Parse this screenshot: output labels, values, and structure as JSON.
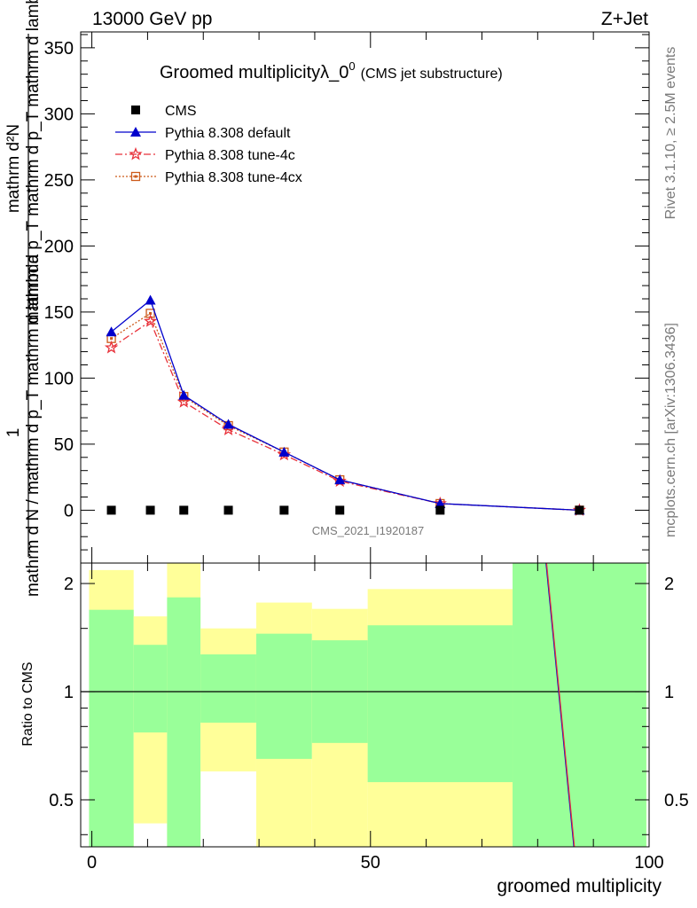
{
  "header": {
    "energy_label": "13000 GeV pp",
    "process_label": "Z+Jet"
  },
  "side_labels": {
    "rivet_label": "Rivet 3.1.10, ≥ 2.5M events",
    "mcplots_label": "mcplots.cern.ch [arXiv:1306.3436]"
  },
  "colors": {
    "pythia_default": "#0000cc",
    "tune_4c": "#e8313a",
    "tune_4cx": "#cc5a1a",
    "band_inner": "#99ff99",
    "band_outer": "#ffff99"
  },
  "chart_data": [
    {
      "type": "line",
      "title": "Groomed multiplicityλ_0",
      "title_superscript": "0",
      "subtitle": "(CMS jet substructure)",
      "xlabel": "groomed multiplicity",
      "ylabel_top": "1",
      "ylabel_bottom": "mathrm d N / mathrm d p_T mathrm d lambda",
      "ylabel_top_line2": "mathrm d²N",
      "ylabel_bottom_line2": "mathrm d p_T mathrm d p_T mathrm d lambda",
      "analysis_label": "CMS_2021_I1920187",
      "xlim": [
        -2,
        100
      ],
      "ylim": [
        -40,
        362
      ],
      "yticks": [
        0,
        50,
        100,
        150,
        200,
        250,
        300,
        350
      ],
      "xticks": [
        0,
        50,
        100
      ],
      "legend_position": "top-left",
      "series": [
        {
          "name": "CMS",
          "marker": "square",
          "x": [
            3.5,
            10.5,
            16.5,
            24.5,
            34.5,
            44.5,
            62.5,
            87.5
          ],
          "y": [
            0,
            0,
            0,
            0,
            0,
            0,
            0,
            0
          ]
        },
        {
          "name": "Pythia 8.308 default",
          "marker": "triangle",
          "line": "solid",
          "x": [
            3.5,
            10.5,
            16.5,
            24.5,
            34.5,
            44.5,
            62.5,
            87.5
          ],
          "y": [
            135,
            159,
            87,
            65,
            44,
            23,
            5,
            0
          ]
        },
        {
          "name": "Pythia 8.308 tune-4c",
          "marker": "star",
          "line": "dashdot",
          "x": [
            3.5,
            10.5,
            16.5,
            24.5,
            34.5,
            44.5,
            62.5,
            87.5
          ],
          "y": [
            123,
            143,
            82,
            61,
            42,
            22,
            5,
            0
          ]
        },
        {
          "name": "Pythia 8.308 tune-4cx",
          "marker": "open-square",
          "line": "dotted",
          "x": [
            3.5,
            10.5,
            16.5,
            24.5,
            34.5,
            44.5,
            62.5,
            87.5
          ],
          "y": [
            130,
            149,
            86,
            64,
            44,
            23,
            5,
            0
          ]
        }
      ]
    },
    {
      "type": "area",
      "ylabel": "Ratio to CMS",
      "xlabel": "groomed multiplicity",
      "xlim": [
        -2,
        100
      ],
      "ylim": [
        0.37,
        2.28
      ],
      "yticks": [
        0.5,
        1,
        2
      ],
      "xticks": [
        0,
        50,
        100
      ],
      "bands": [
        {
          "x0": -0.5,
          "x1": 7.5,
          "outer": [
            0.37,
            2.18
          ],
          "inner": [
            0.37,
            1.69
          ]
        },
        {
          "x0": 7.5,
          "x1": 13.5,
          "outer": [
            0.43,
            1.62
          ],
          "inner": [
            0.77,
            1.35
          ]
        },
        {
          "x0": 13.5,
          "x1": 19.5,
          "outer": [
            0.37,
            2.28
          ],
          "inner": [
            0.37,
            1.83
          ]
        },
        {
          "x0": 19.5,
          "x1": 29.5,
          "outer": [
            0.6,
            1.5
          ],
          "inner": [
            0.82,
            1.27
          ]
        },
        {
          "x0": 29.5,
          "x1": 39.5,
          "outer": [
            0.37,
            1.77
          ],
          "inner": [
            0.65,
            1.45
          ]
        },
        {
          "x0": 39.5,
          "x1": 49.5,
          "outer": [
            0.37,
            1.7
          ],
          "inner": [
            0.72,
            1.39
          ]
        },
        {
          "x0": 49.5,
          "x1": 75.5,
          "outer": [
            0.37,
            1.93
          ],
          "inner": [
            0.56,
            1.53
          ]
        },
        {
          "x0": 75.5,
          "x1": 99.5,
          "outer": [
            0.37,
            2.28
          ],
          "inner": [
            0.37,
            2.28
          ]
        }
      ],
      "series": [
        {
          "name": "Pythia 8.308 default",
          "x": [
            81.5,
            86.5
          ],
          "y": [
            2.28,
            0.37
          ]
        },
        {
          "name": "Pythia 8.308 tune-4c",
          "x": [
            81.6,
            86.6
          ],
          "y": [
            2.28,
            0.37
          ]
        }
      ],
      "reference_line": 1
    }
  ]
}
